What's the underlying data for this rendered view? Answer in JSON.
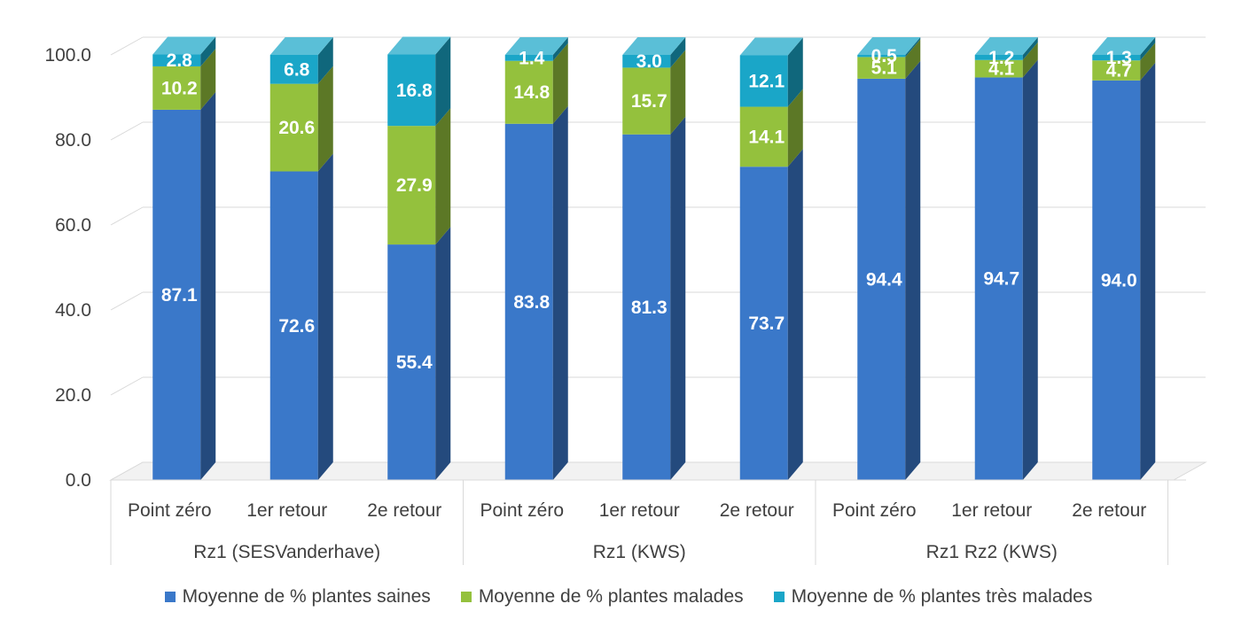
{
  "chart_data": {
    "type": "bar",
    "stacked": true,
    "three_d": true,
    "title": "",
    "xlabel": "",
    "ylabel": "",
    "ylim": [
      0,
      100
    ],
    "yticks": [
      "0.0",
      "20.0",
      "40.0",
      "60.0",
      "80.0",
      "100.0"
    ],
    "grid": true,
    "legend_position": "bottom",
    "groups": [
      {
        "label": "Rz1 (SESVanderhave)",
        "categories": [
          "Point zéro",
          "1er retour",
          "2e retour"
        ]
      },
      {
        "label": "Rz1 (KWS)",
        "categories": [
          "Point zéro",
          "1er retour",
          "2e retour"
        ]
      },
      {
        "label": "Rz1 Rz2 (KWS)",
        "categories": [
          "Point zéro",
          "1er retour",
          "2e retour"
        ]
      }
    ],
    "series": [
      {
        "name": "Moyenne de % plantes saines",
        "color": "#3a78c9",
        "values": [
          87.1,
          72.6,
          55.4,
          83.8,
          81.3,
          73.7,
          94.4,
          94.7,
          94.0
        ],
        "labels": [
          "87.1",
          "72.6",
          "55.4",
          "83.8",
          "81.3",
          "73.7",
          "94.4",
          "94.7",
          "94.0"
        ]
      },
      {
        "name": "Moyenne de % plantes malades",
        "color": "#94c13d",
        "values": [
          10.2,
          20.6,
          27.9,
          14.8,
          15.7,
          14.1,
          5.1,
          4.1,
          4.7
        ],
        "labels": [
          "10.2",
          "20.6",
          "27.9",
          "14.8",
          "15.7",
          "14.1",
          "5.1",
          "4.1",
          "4.7"
        ]
      },
      {
        "name": "Moyenne de % plantes très malades",
        "color": "#1aa6c8",
        "values": [
          2.8,
          6.8,
          16.8,
          1.4,
          3.0,
          12.1,
          0.5,
          1.2,
          1.3
        ],
        "labels": [
          "2.8",
          "6.8",
          "16.8",
          "1.4",
          "3.0",
          "12.1",
          "0.5",
          "1.2",
          "1.3"
        ]
      }
    ]
  }
}
